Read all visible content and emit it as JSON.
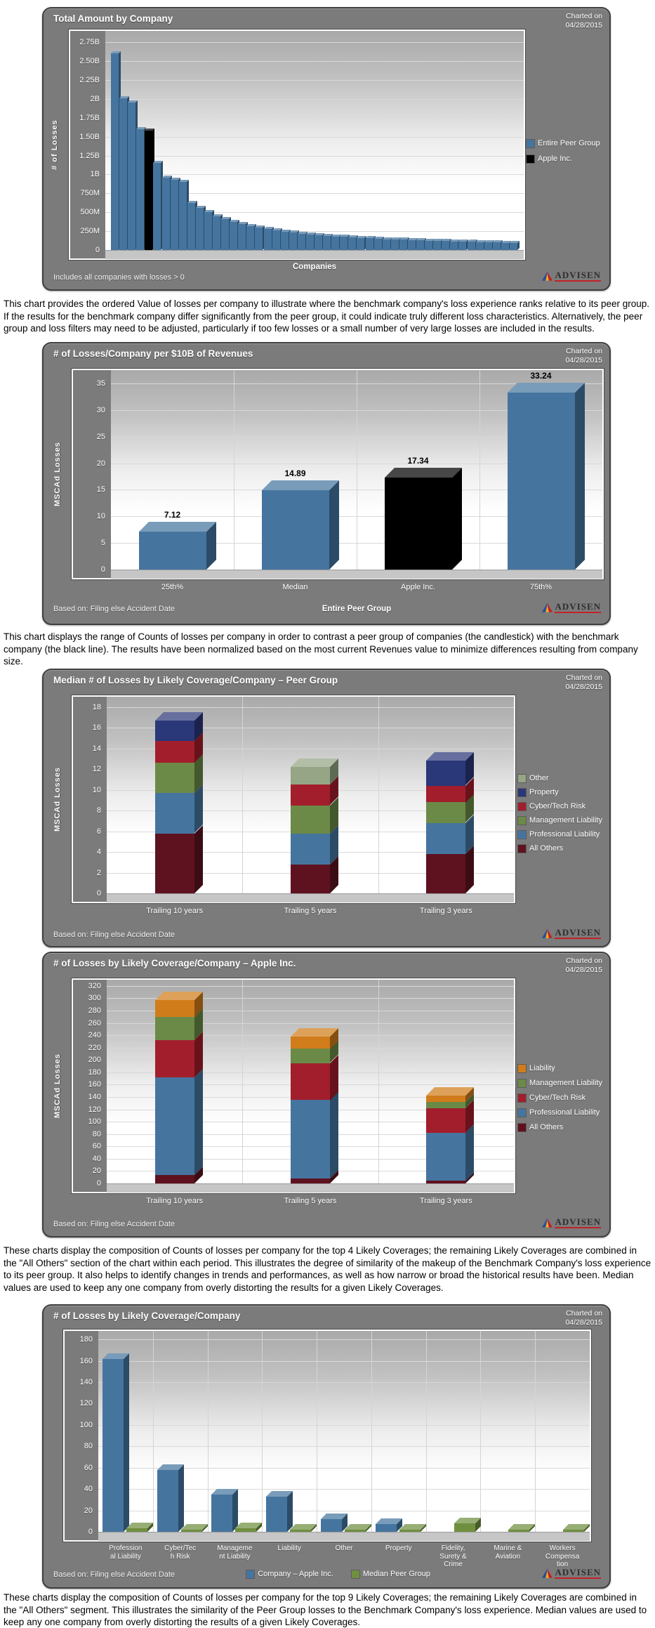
{
  "report": {
    "charted_on": [
      "Charted on",
      "04/28/2015"
    ],
    "advisen_wordmark": "ADVISEN",
    "paragraphs": [
      "This chart provides the ordered Value of losses per company to illustrate where the benchmark company's loss experience ranks relative to its peer group. If the results for the benchmark company differ significantly from the peer group, it could indicate truly different loss characteristics. Alternatively, the peer group and loss filters may need to be adjusted, particularly if too few losses or a small number of very large losses are included in the results.",
      "This chart displays the range of Counts of losses per company in order to contrast a peer group of companies (the candlestick) with the benchmark company (the black line). The results have been normalized based on the most current Revenues value to minimize differences resulting from company size.",
      "These charts display the composition of Counts of losses per company for the top 4 Likely Coverages; the remaining Likely Coverages are combined in the \"All Others\" section of the chart within each period. This illustrates the degree of similarity of the makeup of the Benchmark Company's loss experience to its peer group. It also helps to identify changes in trends and performances, as well as how narrow or broad the historical results have been. Median values are used to keep any one company from overly distorting the results for a given Likely Coverages.",
      "These charts display the composition of Counts of losses per company for the top 9 Likely Coverages; the remaining Likely Coverages are combined in the \"All Others\" segment. This illustrates the similarity of the Peer Group losses to the Benchmark Company's loss experience. Median values are used to keep any one company from overly distorting the results of a given Likely Coverages."
    ]
  },
  "chart_data": [
    {
      "id": "c1",
      "type": "bar",
      "title": "Total Amount by Company",
      "ylabel": "# of Losses",
      "xlabel": "Companies",
      "note": "Includes all companies with losses > 0",
      "legend": [
        {
          "label": "Entire Peer Group",
          "color": "#45759F"
        },
        {
          "label": "Apple Inc.",
          "color": "#000000"
        }
      ],
      "yticks": [
        [
          2750,
          "2.75B"
        ],
        [
          2500,
          "2.50B"
        ],
        [
          2250,
          "2.25B"
        ],
        [
          2000,
          "2B"
        ],
        [
          1750,
          "1.75B"
        ],
        [
          1500,
          "1.50B"
        ],
        [
          1250,
          "1.25B"
        ],
        [
          1000,
          "1B"
        ],
        [
          750,
          "750M"
        ],
        [
          500,
          "500M"
        ],
        [
          250,
          "250M"
        ],
        [
          0,
          "0"
        ]
      ],
      "ylim": [
        0,
        2900
      ],
      "values_musd": [
        2600,
        2010,
        1950,
        1600,
        1580,
        1150,
        960,
        930,
        900,
        620,
        560,
        500,
        450,
        410,
        375,
        345,
        318,
        295,
        275,
        258,
        243,
        230,
        218,
        207,
        197,
        188,
        180,
        173,
        166,
        160,
        154,
        149,
        144,
        139,
        135,
        131,
        127,
        123,
        120,
        117,
        114,
        111,
        108,
        105,
        102,
        99,
        97,
        95
      ],
      "apple_bar_index": 4
    },
    {
      "id": "c2",
      "type": "bar",
      "title": "# of Losses/Company per $10B of Revenues",
      "ylabel": "MSCAd Losses",
      "xlabel": "Entire Peer Group",
      "note": "Based on: Filing else Accident Date",
      "categories": [
        "25th%",
        "Median",
        "Apple Inc.",
        "75th%"
      ],
      "values": [
        7.12,
        14.89,
        17.34,
        33.24
      ],
      "value_labels": [
        "7.12",
        "14.89",
        "17.34",
        "33.24"
      ],
      "bar_colors": [
        "#45759F",
        "#45759F",
        "#000000",
        "#45759F"
      ],
      "yticks": [
        0,
        5,
        10,
        15,
        20,
        25,
        30,
        35
      ],
      "ylim": [
        0,
        37.5
      ]
    },
    {
      "id": "c3",
      "type": "stacked-bar",
      "title": "Median # of Losses by Likely Coverage/Company – Peer Group",
      "ylabel": "MSCAd Losses",
      "note": "Based on: Filing else Accident Date",
      "categories": [
        "Trailing 10 years",
        "Trailing 5 years",
        "Trailing 3 years"
      ],
      "legend": [
        {
          "label": "Other",
          "color": "#95A585"
        },
        {
          "label": "Property",
          "color": "#2A3778"
        },
        {
          "label": "Cyber/Tech Risk",
          "color": "#A21E2C"
        },
        {
          "label": "Management Liability",
          "color": "#6B8A47"
        },
        {
          "label": "Professional Liability",
          "color": "#45759F"
        },
        {
          "label": "All Others",
          "color": "#5E1220"
        }
      ],
      "stacks": [
        [
          {
            "name": "All Others",
            "value": 5.8
          },
          {
            "name": "Professional Liability",
            "value": 3.9
          },
          {
            "name": "Management Liability",
            "value": 2.9
          },
          {
            "name": "Cyber/Tech Risk",
            "value": 2.1
          },
          {
            "name": "Property",
            "value": 2.0
          }
        ],
        [
          {
            "name": "All Others",
            "value": 2.8
          },
          {
            "name": "Professional Liability",
            "value": 3.0
          },
          {
            "name": "Management Liability",
            "value": 2.7
          },
          {
            "name": "Cyber/Tech Risk",
            "value": 2.0
          },
          {
            "name": "Other",
            "value": 1.7
          }
        ],
        [
          {
            "name": "All Others",
            "value": 3.8
          },
          {
            "name": "Professional Liability",
            "value": 3.0
          },
          {
            "name": "Management Liability",
            "value": 2.0
          },
          {
            "name": "Cyber/Tech Risk",
            "value": 1.6
          },
          {
            "name": "Property",
            "value": 2.4
          }
        ]
      ],
      "yticks": [
        0,
        2,
        4,
        6,
        8,
        10,
        12,
        14,
        16,
        18
      ],
      "ylim": [
        0,
        19
      ]
    },
    {
      "id": "c4",
      "type": "stacked-bar",
      "title": "# of Losses by Likely Coverage/Company – Apple Inc.",
      "ylabel": "MSCAd Losses",
      "note": "Based on: Filing else Accident Date",
      "categories": [
        "Trailing 10 years",
        "Trailing 5 years",
        "Trailing 3 years"
      ],
      "legend": [
        {
          "label": "Liability",
          "color": "#D07C1A"
        },
        {
          "label": "Management Liability",
          "color": "#6B8A47"
        },
        {
          "label": "Cyber/Tech Risk",
          "color": "#A21E2C"
        },
        {
          "label": "Professional Liability",
          "color": "#45759F"
        },
        {
          "label": "All Others",
          "color": "#5E1220"
        }
      ],
      "stacks": [
        [
          {
            "name": "All Others",
            "value": 14
          },
          {
            "name": "Professional Liability",
            "value": 158
          },
          {
            "name": "Cyber/Tech Risk",
            "value": 60
          },
          {
            "name": "Management Liability",
            "value": 38
          },
          {
            "name": "Liability",
            "value": 27
          }
        ],
        [
          {
            "name": "All Others",
            "value": 8
          },
          {
            "name": "Professional Liability",
            "value": 127
          },
          {
            "name": "Cyber/Tech Risk",
            "value": 60
          },
          {
            "name": "Management Liability",
            "value": 23
          },
          {
            "name": "Liability",
            "value": 20
          }
        ],
        [
          {
            "name": "All Others",
            "value": 4
          },
          {
            "name": "Professional Liability",
            "value": 78
          },
          {
            "name": "Cyber/Tech Risk",
            "value": 40
          },
          {
            "name": "Management Liability",
            "value": 10
          },
          {
            "name": "Liability",
            "value": 10
          }
        ]
      ],
      "yticks": [
        0,
        20,
        40,
        60,
        80,
        100,
        120,
        140,
        160,
        180,
        200,
        220,
        240,
        260,
        280,
        300,
        320
      ],
      "ylim": [
        0,
        330
      ]
    },
    {
      "id": "c5",
      "type": "grouped-bar",
      "title": "# of Losses by Likely Coverage/Company",
      "note": "Based on: Filing else Accident Date",
      "categories": [
        "Professional Liability",
        "Cyber/Tech Risk",
        "Management Liability",
        "Liability",
        "Other",
        "Property",
        "Fidelity, Surety & Crime",
        "Marine & Aviation",
        "Workers Compensation"
      ],
      "category_display": [
        "Profession\nal Liability",
        "Cyber/Tec\nh Risk",
        "Manageme\nnt Liability",
        "Liability",
        "Other",
        "Property",
        "Fidelity,\nSurety &\nCrime",
        "Marine &\nAviation",
        "Workers\nCompensa\ntion"
      ],
      "series": [
        {
          "name": "Company – Apple Inc.",
          "color": "#45759F",
          "values": [
            162,
            58,
            35,
            33,
            12,
            7,
            0,
            0,
            0
          ]
        },
        {
          "name": "Median Peer Group",
          "color": "#6F8F3F",
          "values": [
            3,
            2,
            3,
            2,
            2,
            2,
            8,
            2,
            2
          ]
        }
      ],
      "yticks": [
        0,
        20,
        40,
        60,
        80,
        100,
        120,
        140,
        160,
        180
      ],
      "ylim": [
        0,
        188
      ]
    }
  ]
}
